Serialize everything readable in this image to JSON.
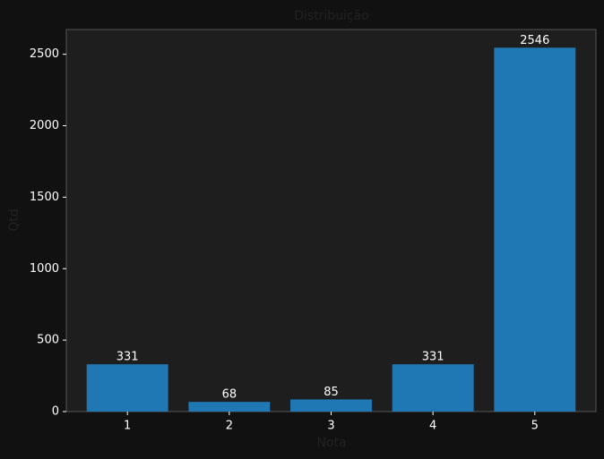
{
  "chart_data": {
    "type": "bar",
    "title": "Distribuição",
    "x_label": "Nota",
    "y_label": "Qtd",
    "categories": [
      "1",
      "2",
      "3",
      "4",
      "5"
    ],
    "values": [
      331,
      68,
      85,
      331,
      2546
    ],
    "color": "#1f77b4",
    "ylim": [
      0,
      2673
    ],
    "yticks": [
      0,
      500,
      1000,
      1500,
      2000,
      2500
    ],
    "data_labels": true
  }
}
